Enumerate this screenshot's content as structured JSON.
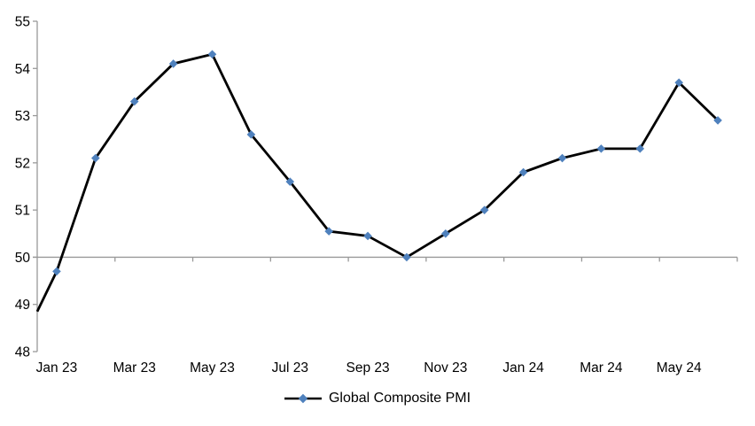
{
  "chart_data": {
    "type": "line",
    "title": "",
    "x_categories": [
      "Jan 23",
      "Feb 23",
      "Mar 23",
      "Apr 23",
      "May 23",
      "Jun 23",
      "Jul 23",
      "Aug 23",
      "Sep 23",
      "Oct 23",
      "Nov 23",
      "Dec 23",
      "Jan 24",
      "Feb 24",
      "Mar 24",
      "Apr 24",
      "May 24",
      "Jun 24"
    ],
    "x_tick_labels": [
      "Jan 23",
      "Mar 23",
      "May 23",
      "Jul 23",
      "Sep 23",
      "Nov 23",
      "Jan 24",
      "Mar 24",
      "May 24"
    ],
    "series": [
      {
        "name": "Global Composite PMI",
        "values": [
          49.7,
          52.1,
          53.3,
          54.1,
          54.3,
          52.6,
          51.6,
          50.55,
          50.45,
          50.0,
          50.5,
          51.0,
          51.8,
          52.1,
          52.3,
          52.3,
          53.7,
          52.9
        ],
        "leading_edge_value": 48.85,
        "line_color": "#000000",
        "marker": "diamond",
        "marker_color": "#4F81BD"
      }
    ],
    "ylim": [
      48,
      55
    ],
    "yticks": [
      48,
      49,
      50,
      51,
      52,
      53,
      54,
      55
    ],
    "x_axis_crosses_at": 50,
    "axis_color": "#999999",
    "text_color": "#000000",
    "grid": false,
    "legend": {
      "label": "Global Composite PMI",
      "position": "bottom-center"
    },
    "background": "#ffffff"
  }
}
